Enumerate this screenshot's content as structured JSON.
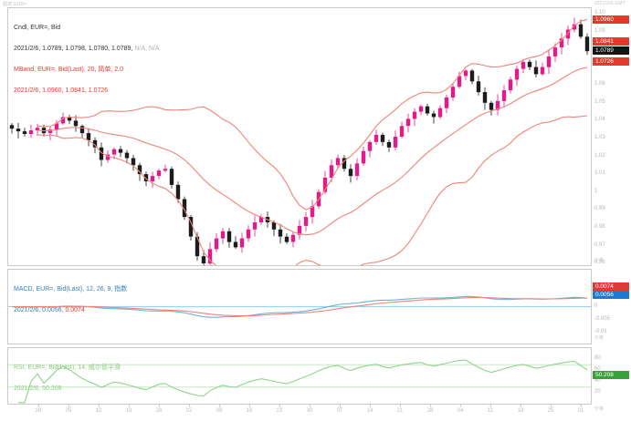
{
  "window": {
    "header_left": "图表 EUR=",
    "header_right": "2021/2/6 GMT"
  },
  "main_panel": {
    "legend": {
      "line1": "Cndl, EUR=, Bid",
      "line2": "2021/2/6, 1.0789, 1.0798, 1.0780, 1.0789, ",
      "line2_na": "N/A, N/A",
      "line3": "MBand, EUR=, Bid(Last), 20, 简单, 2.0",
      "line4": "2021/2/6, 1.0960, 1.0841, 1.0726"
    },
    "badges": [
      {
        "name": "upper-band",
        "label": "1.0960",
        "value": 1.096,
        "color": "#e43a2e"
      },
      {
        "name": "middle-band",
        "label": "1.0841",
        "value": 1.0841,
        "color": "#e43a2e"
      },
      {
        "name": "last-price",
        "label": "1.0789",
        "value": 1.0789,
        "color": "#141414"
      },
      {
        "name": "lower-band",
        "label": "1.0726",
        "value": 1.0726,
        "color": "#e43a2e"
      }
    ],
    "y_ticks": [
      {
        "label": "1.10",
        "value": 1.1
      },
      {
        "label": "1.09",
        "value": 1.09
      },
      {
        "label": "1.06",
        "value": 1.06
      },
      {
        "label": "1.05",
        "value": 1.05
      },
      {
        "label": "1.04",
        "value": 1.04
      },
      {
        "label": "1.03",
        "value": 1.03
      },
      {
        "label": "1.02",
        "value": 1.02
      },
      {
        "label": "1.01",
        "value": 1.01
      },
      {
        "label": "1",
        "value": 1.0
      },
      {
        "label": "0.99",
        "value": 0.99
      },
      {
        "label": "0.98",
        "value": 0.98
      },
      {
        "label": "0.97",
        "value": 0.97
      },
      {
        "label": "0.96",
        "value": 0.96
      }
    ],
    "axis_unit": "价格",
    "y_range": [
      0.959,
      1.103
    ]
  },
  "macd_panel": {
    "legend1": "MACD, EUR=, Bid(Last), 12, 26, 9, 指数",
    "legend2_blue": "2021/2/6, 0.0056, ",
    "legend2_red": "0.0074",
    "badges": [
      {
        "name": "macd-signal",
        "label": "0.0074",
        "value": 0.0074,
        "color": "#e43a2e"
      },
      {
        "name": "macd-line",
        "label": "0.0056",
        "value": 0.0056,
        "color": "#1a7ad4"
      }
    ],
    "y_ticks": [
      {
        "label": "0",
        "value": 0
      },
      {
        "label": "-0.005",
        "value": -0.005
      },
      {
        "label": "-0.01",
        "value": -0.01
      }
    ],
    "axis_unit": "价格",
    "y_range": [
      -0.014,
      0.014
    ]
  },
  "rsi_panel": {
    "legend1": "RSI, EUR=, Bid(Last), 14, 威尔德平滑",
    "legend2": "2021/2/6, 50.208",
    "badge": {
      "name": "rsi-value",
      "label": "50.208",
      "value": 50.208,
      "color": "#3aa13a"
    },
    "y_ticks": [
      {
        "label": "80",
        "value": 80
      },
      {
        "label": "60",
        "value": 60
      },
      {
        "label": "40",
        "value": 40
      },
      {
        "label": "20",
        "value": 20
      }
    ],
    "ref_lines": [
      70,
      30
    ],
    "axis_unit": "价格",
    "y_range": [
      0,
      100
    ]
  },
  "time_axis": {
    "labels": [
      "28",
      "05",
      "12",
      "19",
      "26",
      "02",
      "09",
      "16",
      "23",
      "30",
      "07",
      "14",
      "21",
      "28",
      "04",
      "11",
      "18",
      "25",
      "01"
    ]
  },
  "chart_data": {
    "type": "candlestick",
    "symbol": "EUR=",
    "interval": "daily",
    "date": "2021/2/6",
    "last_ohlc": {
      "open": 1.0789,
      "high": 1.0798,
      "low": 1.078,
      "close": 1.0789
    },
    "bollinger": {
      "period": 20,
      "type": "简单",
      "stdev": 2.0,
      "upper": 1.096,
      "middle": 1.0841,
      "lower": 1.0726
    },
    "macd": {
      "fast": 12,
      "slow": 26,
      "signal_period": 9,
      "type": "指数",
      "macd_value": 0.0056,
      "signal_value": 0.0074
    },
    "rsi": {
      "period": 14,
      "smoothing": "威尔德平滑",
      "value": 50.208
    },
    "x_tick_labels": [
      "28",
      "05",
      "12",
      "19",
      "26",
      "02",
      "09",
      "16",
      "23",
      "30",
      "07",
      "14",
      "21",
      "28",
      "04",
      "11",
      "18",
      "25",
      "01"
    ],
    "y_range_price": [
      0.959,
      1.103
    ],
    "y_range_macd": [
      -0.014,
      0.014
    ],
    "y_range_rsi": [
      0,
      100
    ],
    "closes": [
      1.0355,
      1.034,
      1.0325,
      1.0345,
      1.036,
      1.033,
      1.035,
      1.0385,
      1.042,
      1.04,
      1.037,
      1.033,
      1.029,
      1.025,
      1.018,
      1.021,
      1.024,
      1.022,
      1.019,
      1.015,
      1.01,
      1.006,
      1.009,
      1.012,
      1.013,
      1.004,
      0.996,
      0.986,
      0.975,
      0.964,
      0.96,
      0.968,
      0.974,
      0.978,
      0.972,
      0.969,
      0.974,
      0.979,
      0.983,
      0.986,
      0.983,
      0.979,
      0.975,
      0.972,
      0.976,
      0.981,
      0.986,
      0.992,
      1.0,
      1.008,
      1.015,
      1.019,
      1.013,
      1.009,
      1.016,
      1.023,
      1.028,
      1.032,
      1.028,
      1.025,
      1.031,
      1.037,
      1.041,
      1.045,
      1.048,
      1.044,
      1.042,
      1.047,
      1.053,
      1.059,
      1.065,
      1.068,
      1.062,
      1.056,
      1.05,
      1.046,
      1.051,
      1.057,
      1.063,
      1.069,
      1.073,
      1.07,
      1.066,
      1.07,
      1.076,
      1.081,
      1.086,
      1.091,
      1.094,
      1.087,
      1.0789
    ],
    "colors": {
      "up_candle": "#e11b8a",
      "down_candle": "#1c1c1c",
      "bollinger_band": "#ee8478",
      "macd_line": "#6fb1dd",
      "macd_signal": "#ee8478",
      "zero_line": "#9fd4ef",
      "rsi_line": "#90d38e",
      "rsi_ref": "#c6e8c4",
      "badge_red": "#e43a2e",
      "badge_blue": "#1a7ad4",
      "badge_green": "#3aa13a",
      "badge_black": "#141414"
    }
  }
}
